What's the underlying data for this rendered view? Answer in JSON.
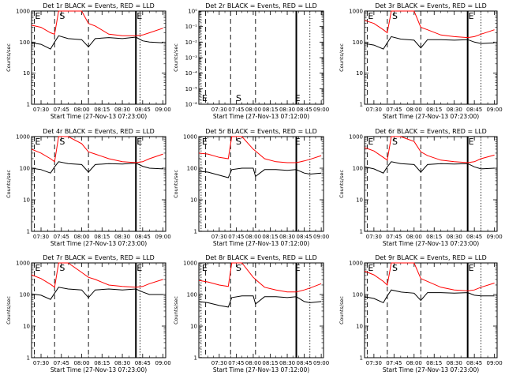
{
  "figure": {
    "x_tick_labels": [
      "07:30",
      "07:45",
      "08:00",
      "08:15",
      "08:30",
      "08:45",
      "09:00"
    ],
    "y_tick_labels": [
      "1",
      "10",
      "100",
      "1000"
    ],
    "y_tick_labels_empty": [
      "10⁻⁶",
      "10⁻⁵",
      "10⁻⁴",
      "10⁻³",
      "10⁻²",
      "10⁻¹",
      "10⁰"
    ],
    "y_axis_label": "Counts/sec",
    "x_axis_label": "Start Time (27-Nov-13 07:23:00)",
    "x_axis_label_alt": "Start Time (27-Nov-13 07:12:00)",
    "marker_E": "E",
    "marker_S": "S",
    "colors": {
      "events": "#000000",
      "lld": "#ff0000",
      "frame": "#000000"
    }
  },
  "chart_data": [
    {
      "type": "line",
      "title": "Det 1r BLACK = Events, RED = LLD",
      "xlabel": "Start Time (27-Nov-13 07:23:00)",
      "ylabel": "Counts/sec",
      "y_scale": "log",
      "ylim": [
        1,
        1000
      ],
      "xlim": [
        "07:23",
        "09:02"
      ],
      "x_ticks": [
        "07:30",
        "07:45",
        "08:00",
        "08:15",
        "08:30",
        "08:45",
        "09:00"
      ],
      "markers": {
        "E_start": "07:25",
        "S": "07:43",
        "E_end": "08:40"
      },
      "vlines_dashed": [
        "07:25",
        "07:40",
        "08:05"
      ],
      "vlines_solid": [
        "08:40"
      ],
      "vlines_dotted": [
        "08:43"
      ],
      "series": [
        {
          "name": "BLACK = Events",
          "x": [
            "07:23",
            "07:30",
            "07:37",
            "07:40",
            "07:43",
            "07:50",
            "08:00",
            "08:05",
            "08:10",
            "08:20",
            "08:30",
            "08:40",
            "08:45",
            "08:50",
            "09:00"
          ],
          "values": [
            95,
            85,
            60,
            100,
            160,
            130,
            120,
            70,
            130,
            140,
            130,
            145,
            110,
            100,
            95
          ]
        },
        {
          "name": "RED = LLD",
          "x": [
            "07:23",
            "07:30",
            "07:37",
            "07:40",
            "07:43",
            "07:47",
            "07:50",
            "08:00",
            "08:05",
            "08:10",
            "08:20",
            "08:30",
            "08:40",
            "08:45",
            "08:50",
            "09:00"
          ],
          "values": [
            350,
            300,
            200,
            180,
            1000,
            1000,
            1000,
            1000,
            400,
            330,
            180,
            160,
            160,
            170,
            200,
            280
          ]
        }
      ]
    },
    {
      "type": "line",
      "title": "Det 2r BLACK = Events, RED = LLD",
      "xlabel": "Start Time (27-Nov-13 07:12:00)",
      "ylabel": "Counts/sec",
      "y_scale": "log",
      "ylim": [
        1e-06,
        1
      ],
      "xlim": [
        "07:12",
        "09:02"
      ],
      "x_ticks": [
        "07:30",
        "07:45",
        "08:00",
        "08:15",
        "08:30",
        "08:45",
        "09:00"
      ],
      "markers": {
        "E_start": "07:14",
        "S": "07:44",
        "E_end": "08:36"
      },
      "vlines_dashed": [
        "07:18",
        "07:40",
        "08:02"
      ],
      "vlines_solid": [
        "08:38"
      ],
      "vlines_dotted": [
        "07:14",
        "08:50"
      ],
      "series": []
    },
    {
      "type": "line",
      "title": "Det 3r BLACK = Events, RED = LLD",
      "xlabel": "Start Time (27-Nov-13 07:23:00)",
      "ylabel": "Counts/sec",
      "y_scale": "log",
      "ylim": [
        1,
        1000
      ],
      "xlim": [
        "07:23",
        "09:02"
      ],
      "x_ticks": [
        "07:30",
        "07:45",
        "08:00",
        "08:15",
        "08:30",
        "08:45",
        "09:00"
      ],
      "markers": {
        "E_start": "07:25",
        "S": "07:43",
        "E_end": "08:40"
      },
      "vlines_dashed": [
        "07:25",
        "07:40",
        "08:05"
      ],
      "vlines_solid": [
        "08:40"
      ],
      "vlines_dotted": [
        "08:50"
      ],
      "series": [
        {
          "name": "BLACK = Events",
          "x": [
            "07:23",
            "07:30",
            "07:37",
            "07:40",
            "07:43",
            "07:50",
            "08:00",
            "08:05",
            "08:10",
            "08:20",
            "08:30",
            "08:40",
            "08:45",
            "08:50",
            "09:00"
          ],
          "values": [
            90,
            80,
            60,
            95,
            150,
            125,
            115,
            65,
            120,
            120,
            115,
            120,
            100,
            90,
            95
          ]
        },
        {
          "name": "RED = LLD",
          "x": [
            "07:23",
            "07:30",
            "07:37",
            "07:40",
            "07:43",
            "07:47",
            "07:50",
            "08:00",
            "08:05",
            "08:10",
            "08:20",
            "08:30",
            "08:40",
            "08:45",
            "08:50",
            "09:00"
          ],
          "values": [
            500,
            400,
            250,
            200,
            1000,
            1000,
            1000,
            1000,
            300,
            250,
            170,
            150,
            140,
            150,
            180,
            250
          ]
        }
      ]
    },
    {
      "type": "line",
      "title": "Det 4r BLACK = Events, RED = LLD",
      "xlabel": "Start Time (27-Nov-13 07:23:00)",
      "ylabel": "Counts/sec",
      "y_scale": "log",
      "ylim": [
        1,
        1000
      ],
      "xlim": [
        "07:23",
        "09:02"
      ],
      "x_ticks": [
        "07:30",
        "07:45",
        "08:00",
        "08:15",
        "08:30",
        "08:45",
        "09:00"
      ],
      "markers": {
        "E_start": "07:25",
        "S": "07:43",
        "E_end": "08:40"
      },
      "vlines_dashed": [
        "07:25",
        "07:40",
        "08:05"
      ],
      "vlines_solid": [
        "08:40"
      ],
      "vlines_dotted": [
        "08:43"
      ],
      "series": [
        {
          "name": "BLACK = Events",
          "x": [
            "07:23",
            "07:30",
            "07:37",
            "07:40",
            "07:43",
            "07:50",
            "08:00",
            "08:05",
            "08:10",
            "08:20",
            "08:30",
            "08:40",
            "08:45",
            "08:50",
            "09:00"
          ],
          "values": [
            100,
            90,
            70,
            110,
            160,
            140,
            130,
            75,
            130,
            140,
            135,
            145,
            115,
            100,
            95
          ]
        },
        {
          "name": "RED = LLD",
          "x": [
            "07:23",
            "07:30",
            "07:37",
            "07:40",
            "07:43",
            "07:47",
            "07:50",
            "08:00",
            "08:05",
            "08:10",
            "08:20",
            "08:30",
            "08:40",
            "08:45",
            "08:50",
            "09:00"
          ],
          "values": [
            400,
            300,
            200,
            160,
            1000,
            1000,
            1000,
            600,
            330,
            280,
            200,
            160,
            150,
            160,
            200,
            280
          ]
        }
      ]
    },
    {
      "type": "line",
      "title": "Det 5r BLACK = Events, RED = LLD",
      "xlabel": "Start Time (27-Nov-13 07:12:00)",
      "ylabel": "Counts/sec",
      "y_scale": "log",
      "ylim": [
        1,
        1000
      ],
      "xlim": [
        "07:12",
        "09:02"
      ],
      "x_ticks": [
        "07:30",
        "07:45",
        "08:00",
        "08:15",
        "08:30",
        "08:45",
        "09:00"
      ],
      "markers": {
        "E_start": "07:14",
        "S": "07:44",
        "E_end": "08:36"
      },
      "vlines_dashed": [
        "07:18",
        "07:40",
        "08:02"
      ],
      "vlines_solid": [
        "08:38"
      ],
      "vlines_dotted": [
        "07:14",
        "08:50"
      ],
      "series": [
        {
          "name": "BLACK = Events",
          "x": [
            "07:12",
            "07:20",
            "07:30",
            "07:38",
            "07:41",
            "07:50",
            "08:00",
            "08:02",
            "08:10",
            "08:20",
            "08:30",
            "08:38",
            "08:45",
            "08:50",
            "09:00"
          ],
          "values": [
            80,
            75,
            60,
            50,
            90,
            100,
            100,
            55,
            90,
            90,
            85,
            90,
            70,
            65,
            70
          ]
        },
        {
          "name": "RED = LLD",
          "x": [
            "07:12",
            "07:20",
            "07:30",
            "07:38",
            "07:41",
            "07:45",
            "07:50",
            "08:00",
            "08:02",
            "08:10",
            "08:20",
            "08:30",
            "08:38",
            "08:45",
            "08:50",
            "09:00"
          ],
          "values": [
            300,
            280,
            220,
            200,
            1000,
            1000,
            1000,
            400,
            350,
            200,
            160,
            150,
            150,
            170,
            190,
            250
          ]
        }
      ]
    },
    {
      "type": "line",
      "title": "Det 6r BLACK = Events, RED = LLD",
      "xlabel": "Start Time (27-Nov-13 07:23:00)",
      "ylabel": "Counts/sec",
      "y_scale": "log",
      "ylim": [
        1,
        1000
      ],
      "xlim": [
        "07:23",
        "09:02"
      ],
      "x_ticks": [
        "07:30",
        "07:45",
        "08:00",
        "08:15",
        "08:30",
        "08:45",
        "09:00"
      ],
      "markers": {
        "E_start": "07:25",
        "S": "07:43",
        "E_end": "08:40"
      },
      "vlines_dashed": [
        "07:25",
        "07:40",
        "08:05"
      ],
      "vlines_solid": [
        "08:40"
      ],
      "vlines_dotted": [
        "08:50"
      ],
      "series": [
        {
          "name": "BLACK = Events",
          "x": [
            "07:23",
            "07:30",
            "07:37",
            "07:40",
            "07:43",
            "07:50",
            "08:00",
            "08:05",
            "08:10",
            "08:20",
            "08:30",
            "08:40",
            "08:45",
            "08:50",
            "09:00"
          ],
          "values": [
            110,
            95,
            70,
            110,
            160,
            140,
            130,
            75,
            130,
            140,
            135,
            140,
            110,
            95,
            100
          ]
        },
        {
          "name": "RED = LLD",
          "x": [
            "07:23",
            "07:30",
            "07:37",
            "07:40",
            "07:43",
            "07:47",
            "07:50",
            "08:00",
            "08:05",
            "08:10",
            "08:20",
            "08:30",
            "08:40",
            "08:45",
            "08:50",
            "09:00"
          ],
          "values": [
            450,
            350,
            220,
            180,
            1000,
            1000,
            1000,
            700,
            330,
            250,
            180,
            160,
            150,
            160,
            200,
            260
          ]
        }
      ]
    },
    {
      "type": "line",
      "title": "Det 7r BLACK = Events, RED = LLD",
      "xlabel": "Start Time (27-Nov-13 07:23:00)",
      "ylabel": "Counts/sec",
      "y_scale": "log",
      "ylim": [
        1,
        1000
      ],
      "xlim": [
        "07:23",
        "09:02"
      ],
      "x_ticks": [
        "07:30",
        "07:45",
        "08:00",
        "08:15",
        "08:30",
        "08:45",
        "09:00"
      ],
      "markers": {
        "E_start": "07:25",
        "S": "07:43",
        "E_end": "08:40"
      },
      "vlines_dashed": [
        "07:25",
        "07:40",
        "08:05"
      ],
      "vlines_solid": [
        "08:40"
      ],
      "vlines_dotted": [
        "08:43"
      ],
      "series": [
        {
          "name": "BLACK = Events",
          "x": [
            "07:23",
            "07:30",
            "07:37",
            "07:40",
            "07:43",
            "07:50",
            "08:00",
            "08:05",
            "08:10",
            "08:20",
            "08:30",
            "08:40",
            "08:45",
            "08:50",
            "09:00"
          ],
          "values": [
            105,
            95,
            70,
            110,
            170,
            150,
            140,
            80,
            140,
            150,
            140,
            150,
            120,
            100,
            100
          ]
        },
        {
          "name": "RED = LLD",
          "x": [
            "07:23",
            "07:30",
            "07:37",
            "07:40",
            "07:43",
            "07:47",
            "07:50",
            "08:00",
            "08:05",
            "08:10",
            "08:20",
            "08:30",
            "08:40",
            "08:45",
            "08:50",
            "09:00"
          ],
          "values": [
            420,
            320,
            210,
            170,
            1000,
            1000,
            1000,
            500,
            350,
            300,
            200,
            180,
            170,
            180,
            220,
            300
          ]
        }
      ]
    },
    {
      "type": "line",
      "title": "Det 8r BLACK = Events, RED = LLD",
      "xlabel": "Start Time (27-Nov-13 07:12:00)",
      "ylabel": "Counts/sec",
      "y_scale": "log",
      "ylim": [
        1,
        1000
      ],
      "xlim": [
        "07:12",
        "09:02"
      ],
      "x_ticks": [
        "07:30",
        "07:45",
        "08:00",
        "08:15",
        "08:30",
        "08:45",
        "09:00"
      ],
      "markers": {
        "E_start": "07:14",
        "S": "07:44",
        "E_end": "08:36"
      },
      "vlines_dashed": [
        "07:18",
        "07:40",
        "08:02"
      ],
      "vlines_solid": [
        "08:38"
      ],
      "vlines_dotted": [
        "07:14",
        "08:50"
      ],
      "series": [
        {
          "name": "BLACK = Events",
          "x": [
            "07:12",
            "07:20",
            "07:30",
            "07:38",
            "07:41",
            "07:50",
            "08:00",
            "08:02",
            "08:10",
            "08:20",
            "08:30",
            "08:38",
            "08:45",
            "08:50",
            "09:00"
          ],
          "values": [
            60,
            55,
            45,
            40,
            80,
            90,
            90,
            50,
            85,
            85,
            80,
            85,
            60,
            55,
            60
          ]
        },
        {
          "name": "RED = LLD",
          "x": [
            "07:12",
            "07:20",
            "07:30",
            "07:38",
            "07:41",
            "07:45",
            "07:50",
            "08:00",
            "08:02",
            "08:10",
            "08:20",
            "08:30",
            "08:38",
            "08:45",
            "08:50",
            "09:00"
          ],
          "values": [
            280,
            250,
            200,
            180,
            1000,
            1000,
            1000,
            350,
            300,
            170,
            140,
            120,
            120,
            140,
            160,
            220
          ]
        }
      ]
    },
    {
      "type": "line",
      "title": "Det 9r BLACK = Events, RED = LLD",
      "xlabel": "Start Time (27-Nov-13 07:23:00)",
      "ylabel": "Counts/sec",
      "y_scale": "log",
      "ylim": [
        1,
        1000
      ],
      "xlim": [
        "07:23",
        "09:02"
      ],
      "x_ticks": [
        "07:30",
        "07:45",
        "08:00",
        "08:15",
        "08:30",
        "08:45",
        "09:00"
      ],
      "markers": {
        "E_start": "07:25",
        "S": "07:43",
        "E_end": "08:40"
      },
      "vlines_dashed": [
        "07:25",
        "07:40",
        "08:05"
      ],
      "vlines_solid": [
        "08:40"
      ],
      "vlines_dotted": [
        "08:50"
      ],
      "series": [
        {
          "name": "BLACK = Events",
          "x": [
            "07:23",
            "07:30",
            "07:37",
            "07:40",
            "07:43",
            "07:50",
            "08:00",
            "08:05",
            "08:10",
            "08:20",
            "08:30",
            "08:40",
            "08:45",
            "08:50",
            "09:00"
          ],
          "values": [
            85,
            75,
            55,
            90,
            140,
            120,
            110,
            65,
            115,
            115,
            110,
            115,
            95,
            90,
            90
          ]
        },
        {
          "name": "RED = LLD",
          "x": [
            "07:23",
            "07:30",
            "07:37",
            "07:40",
            "07:43",
            "07:47",
            "07:50",
            "08:00",
            "08:05",
            "08:10",
            "08:20",
            "08:30",
            "08:40",
            "08:45",
            "08:50",
            "09:00"
          ],
          "values": [
            550,
            420,
            260,
            200,
            1000,
            1000,
            1000,
            1000,
            320,
            260,
            170,
            140,
            130,
            140,
            170,
            230
          ]
        }
      ]
    }
  ]
}
